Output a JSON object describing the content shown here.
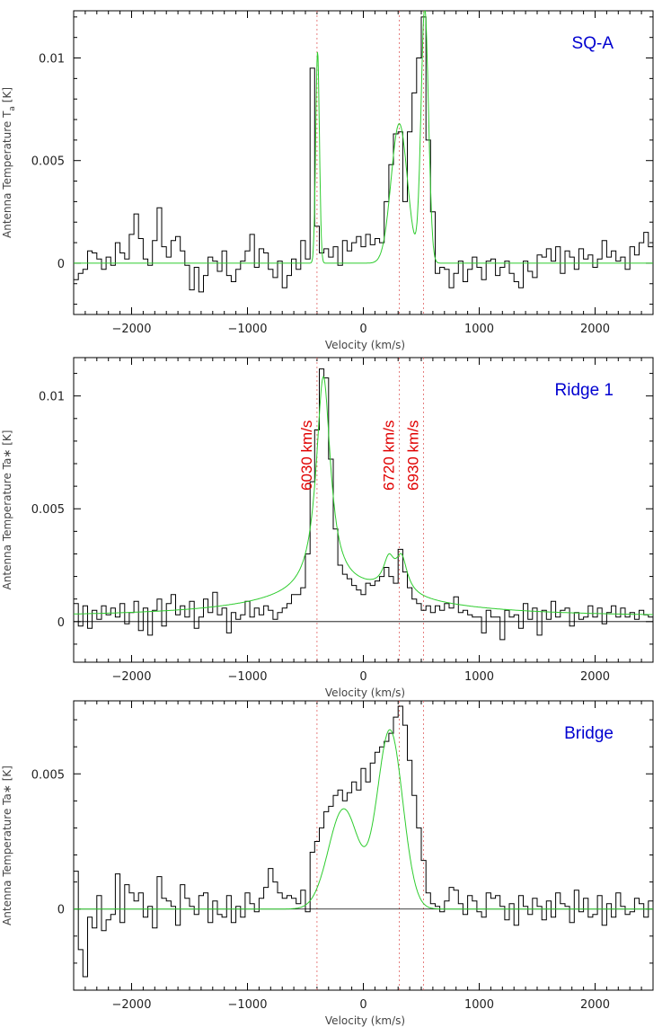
{
  "chart_data": [
    {
      "type": "line",
      "title": "SQ-A",
      "xlabel": "Velocity (km/s)",
      "ylabel": "Antenna Temperature T",
      "ylabel_subscript": "a",
      "ylabel_unit": " [K]",
      "xlim": [
        -2500,
        2500
      ],
      "ylim": [
        -0.0025,
        0.0123
      ],
      "xticks": [
        -2000,
        -1000,
        0,
        1000,
        2000
      ],
      "xtick_labels": [
        "−2000",
        "−1000",
        "0",
        "1000",
        "2000"
      ],
      "yticks": [
        0,
        0.005,
        0.01
      ],
      "ytick_labels": [
        "0",
        "0.005",
        "0.01"
      ],
      "zero_line": false,
      "reference_lines": [
        -400,
        310,
        520
      ],
      "series": [
        {
          "kind": "histogram",
          "color": "#000000",
          "bin_width": 40,
          "x": [
            -2500,
            -2460,
            -2420,
            -2380,
            -2340,
            -2300,
            -2260,
            -2220,
            -2180,
            -2140,
            -2100,
            -2060,
            -2020,
            -1980,
            -1940,
            -1900,
            -1860,
            -1820,
            -1780,
            -1740,
            -1700,
            -1660,
            -1620,
            -1580,
            -1540,
            -1500,
            -1460,
            -1420,
            -1380,
            -1340,
            -1300,
            -1260,
            -1220,
            -1180,
            -1140,
            -1100,
            -1060,
            -1020,
            -980,
            -940,
            -900,
            -860,
            -820,
            -780,
            -740,
            -700,
            -660,
            -620,
            -580,
            -540,
            -500,
            -460,
            -420,
            -380,
            -340,
            -300,
            -260,
            -220,
            -180,
            -140,
            -100,
            -60,
            -20,
            20,
            60,
            100,
            140,
            180,
            220,
            260,
            300,
            340,
            380,
            420,
            460,
            500,
            540,
            580,
            620,
            660,
            700,
            740,
            780,
            820,
            860,
            900,
            940,
            980,
            1020,
            1060,
            1100,
            1140,
            1180,
            1220,
            1260,
            1300,
            1340,
            1380,
            1420,
            1460,
            1500,
            1540,
            1580,
            1620,
            1660,
            1700,
            1740,
            1780,
            1820,
            1860,
            1900,
            1940,
            1980,
            2020,
            2060,
            2100,
            2140,
            2180,
            2220,
            2260,
            2300,
            2340,
            2380,
            2420,
            2460
          ],
          "y": [
            -0.0008,
            -0.0005,
            -0.0003,
            0.0006,
            0.0005,
            0.0002,
            -0.0003,
            0.0003,
            -0.0001,
            0.001,
            0.0005,
            0.0002,
            0.0014,
            0.0024,
            0.0012,
            0.0002,
            -0.0001,
            0.0011,
            0.0027,
            0.0008,
            0.0003,
            0.0011,
            0.0013,
            0.0006,
            -0.0001,
            -0.0013,
            -0.0002,
            -0.0014,
            -0.0006,
            0.0003,
            0.0001,
            -0.0004,
            0.0006,
            -0.0006,
            -0.0009,
            -0.0003,
            0.0001,
            0.0006,
            0.0014,
            -0.0002,
            0.0007,
            0.0005,
            -0.0003,
            -0.0007,
            0.0001,
            -0.0012,
            -0.0006,
            0.0002,
            -0.0003,
            0.0011,
            0.0002,
            0.0095,
            0.0018,
            0.0005,
            0.0007,
            0.0003,
            0.0008,
            -0.0001,
            0.0011,
            0.0006,
            0.001,
            0.0013,
            0.0008,
            0.0014,
            0.0009,
            0.0012,
            0.001,
            0.003,
            0.0048,
            0.0063,
            0.0064,
            0.003,
            0.0064,
            0.0083,
            0.01,
            0.012,
            0.006,
            0.0025,
            -0.0005,
            -0.0002,
            -0.0003,
            -0.0012,
            -0.0005,
            0.0001,
            -0.0009,
            -0.0003,
            0.0003,
            -0.0002,
            -0.0008,
            0.0001,
            0.0002,
            -0.0006,
            -0.0002,
            0.0001,
            -0.0005,
            -0.0009,
            -0.0012,
            0.0001,
            -0.0004,
            -0.0007,
            0.0004,
            0.0003,
            0.0007,
            0.0001,
            0.0008,
            -0.0005,
            0.0006,
            0.0003,
            -0.0003,
            0.0007,
            0.0002,
            0.0004,
            -0.0002,
            0.0002,
            0.0011,
            0.0003,
            0.0006,
            0.0001,
            0.0003,
            -0.0003,
            0.0008,
            0.0004,
            0.001,
            0.0015,
            0.0008
          ]
        },
        {
          "kind": "gaussian-fit",
          "color": "#2ecc2e",
          "components": [
            {
              "center": -395,
              "amplitude": 0.0103,
              "sigma": 16
            },
            {
              "center": 310,
              "amplitude": 0.0068,
              "sigma": 70
            },
            {
              "center": 530,
              "amplitude": 0.0124,
              "sigma": 32
            }
          ]
        }
      ]
    },
    {
      "type": "line",
      "title": "Ridge 1",
      "xlabel": "Velocity (km/s)",
      "ylabel": "Antenna Temperature Ta∗ [K]",
      "xlim": [
        -2500,
        2500
      ],
      "ylim": [
        -0.0018,
        0.0117
      ],
      "xticks": [
        -2000,
        -1000,
        0,
        1000,
        2000
      ],
      "xtick_labels": [
        "−2000",
        "−1000",
        "0",
        "1000",
        "2000"
      ],
      "yticks": [
        0,
        0.005,
        0.01
      ],
      "ytick_labels": [
        "0",
        "0.005",
        "0.01"
      ],
      "zero_line": true,
      "reference_lines": [
        -400,
        310,
        520
      ],
      "annotations": [
        {
          "text": "6030 km/s",
          "x": -400
        },
        {
          "text": "6720 km/s",
          "x": 310
        },
        {
          "text": "6930 km/s",
          "x": 520
        }
      ],
      "series": [
        {
          "kind": "histogram",
          "color": "#000000",
          "bin_width": 40,
          "x": [
            -2500,
            -2460,
            -2420,
            -2380,
            -2340,
            -2300,
            -2260,
            -2220,
            -2180,
            -2140,
            -2100,
            -2060,
            -2020,
            -1980,
            -1940,
            -1900,
            -1860,
            -1820,
            -1780,
            -1740,
            -1700,
            -1660,
            -1620,
            -1580,
            -1540,
            -1500,
            -1460,
            -1420,
            -1380,
            -1340,
            -1300,
            -1260,
            -1220,
            -1180,
            -1140,
            -1100,
            -1060,
            -1020,
            -980,
            -940,
            -900,
            -860,
            -820,
            -780,
            -740,
            -700,
            -660,
            -620,
            -580,
            -540,
            -500,
            -460,
            -420,
            -380,
            -340,
            -300,
            -260,
            -220,
            -180,
            -140,
            -100,
            -60,
            -20,
            20,
            60,
            100,
            140,
            180,
            220,
            260,
            300,
            340,
            380,
            420,
            460,
            500,
            540,
            580,
            620,
            660,
            700,
            740,
            780,
            820,
            860,
            900,
            940,
            980,
            1020,
            1060,
            1100,
            1140,
            1180,
            1220,
            1260,
            1300,
            1340,
            1380,
            1420,
            1460,
            1500,
            1540,
            1580,
            1620,
            1660,
            1700,
            1740,
            1780,
            1820,
            1860,
            1900,
            1940,
            1980,
            2020,
            2060,
            2100,
            2140,
            2180,
            2220,
            2260,
            2300,
            2340,
            2380,
            2420,
            2460
          ],
          "y": [
            0.0008,
            -0.0002,
            0.0007,
            -0.0003,
            0.0005,
            0.0001,
            0.0007,
            0.0003,
            0.0006,
            0.0002,
            0.0008,
            -0.0001,
            0.0004,
            0.0009,
            -0.0004,
            0.0006,
            -0.0006,
            0.0005,
            0.001,
            -0.0002,
            0.0008,
            0.0012,
            0.0003,
            0.0007,
            0.0002,
            0.0009,
            -0.0003,
            0.0002,
            0.001,
            0.0004,
            0.0013,
            0.0003,
            0.0006,
            -0.0005,
            0.0004,
            0.0001,
            0.0003,
            0.0009,
            0.0002,
            0.0006,
            0.0003,
            0.0007,
            0.0005,
            0.0001,
            0.0004,
            0.0006,
            0.0008,
            0.0012,
            0.0012,
            0.0015,
            0.003,
            0.0062,
            0.0085,
            0.0112,
            0.0108,
            0.0072,
            0.0041,
            0.0025,
            0.0021,
            0.0019,
            0.0016,
            0.0014,
            0.0012,
            0.0017,
            0.0016,
            0.0018,
            0.002,
            0.0024,
            0.002,
            0.0017,
            0.0032,
            0.0022,
            0.0015,
            0.001,
            0.0008,
            0.0005,
            0.0007,
            0.0004,
            0.0007,
            0.0005,
            0.0008,
            0.0006,
            0.0011,
            0.0004,
            0.0005,
            0.0003,
            0.0002,
            0.0002,
            -0.0005,
            0.0005,
            0.0002,
            0.0002,
            -0.0008,
            0.0005,
            0.0002,
            0.0003,
            -0.0003,
            0.0008,
            0.0001,
            0.0006,
            -0.0006,
            0.0005,
            0.0001,
            0.0009,
            0.0002,
            0.0005,
            0.0006,
            -0.0002,
            0.0004,
            0.0001,
            0.0002,
            0.0007,
            0.0002,
            0.0006,
            -0.0001,
            0.0004,
            0.0007,
            0.0002,
            0.0006,
            0.0002,
            0.0004,
            0.0001,
            0.0005,
            0.0003,
            0.0002
          ]
        },
        {
          "kind": "lorentzian-fit",
          "color": "#2ecc2e",
          "baseline": 0.0002,
          "components": [
            {
              "center": -345,
              "amplitude": 0.0095,
              "width": 75
            },
            {
              "center": 220,
              "amplitude": 0.0013,
              "width": 60
            },
            {
              "center": 330,
              "amplitude": 0.0015,
              "width": 60
            },
            {
              "center": -150,
              "amplitude": 0.0012,
              "width": 800
            }
          ]
        }
      ]
    },
    {
      "type": "line",
      "title": "Bridge",
      "xlabel": "Velocity (km/s)",
      "ylabel": "Antenna Temperature Ta∗ [K]",
      "xlim": [
        -2500,
        2500
      ],
      "ylim": [
        -0.003,
        0.0077
      ],
      "xticks": [
        -2000,
        -1000,
        0,
        1000,
        2000
      ],
      "xtick_labels": [
        "−2000",
        "−1000",
        "0",
        "1000",
        "2000"
      ],
      "yticks": [
        0,
        0.005
      ],
      "ytick_labels": [
        "0",
        "0.005"
      ],
      "zero_line": true,
      "reference_lines": [
        -400,
        310,
        520
      ],
      "series": [
        {
          "kind": "histogram",
          "color": "#000000",
          "bin_width": 40,
          "x": [
            -2500,
            -2460,
            -2420,
            -2380,
            -2340,
            -2300,
            -2260,
            -2220,
            -2180,
            -2140,
            -2100,
            -2060,
            -2020,
            -1980,
            -1940,
            -1900,
            -1860,
            -1820,
            -1780,
            -1740,
            -1700,
            -1660,
            -1620,
            -1580,
            -1540,
            -1500,
            -1460,
            -1420,
            -1380,
            -1340,
            -1300,
            -1260,
            -1220,
            -1180,
            -1140,
            -1100,
            -1060,
            -1020,
            -980,
            -940,
            -900,
            -860,
            -820,
            -780,
            -740,
            -700,
            -660,
            -620,
            -580,
            -540,
            -500,
            -460,
            -420,
            -380,
            -340,
            -300,
            -260,
            -220,
            -180,
            -140,
            -100,
            -60,
            -20,
            20,
            60,
            100,
            140,
            180,
            220,
            260,
            300,
            340,
            380,
            420,
            460,
            500,
            540,
            580,
            620,
            660,
            700,
            740,
            780,
            820,
            860,
            900,
            940,
            980,
            1020,
            1060,
            1100,
            1140,
            1180,
            1220,
            1260,
            1300,
            1340,
            1380,
            1420,
            1460,
            1500,
            1540,
            1580,
            1620,
            1660,
            1700,
            1740,
            1780,
            1820,
            1860,
            1900,
            1940,
            1980,
            2020,
            2060,
            2100,
            2140,
            2180,
            2220,
            2260,
            2300,
            2340,
            2380,
            2420,
            2460
          ],
          "y": [
            0.0014,
            -0.0015,
            -0.0025,
            -0.0003,
            -0.0007,
            0.0005,
            -0.0008,
            -0.0004,
            -0.0002,
            0.0013,
            -0.0005,
            0.0009,
            0.0006,
            0.0003,
            0.0006,
            -0.0003,
            0.0001,
            -0.0007,
            0.0012,
            0.0004,
            0.0003,
            0.0001,
            -0.0006,
            0.0009,
            0.0004,
            0.0001,
            -0.0002,
            0.0005,
            0.0006,
            -0.0005,
            0.0003,
            -0.0002,
            -0.0003,
            0.0005,
            -0.0005,
            0.0001,
            -0.0003,
            0.0006,
            0.0002,
            -0.0001,
            0.0004,
            0.0008,
            0.0015,
            0.001,
            0.0006,
            0.0004,
            0.0005,
            0.0004,
            0.0002,
            0.0007,
            -0.0001,
            0.0021,
            0.0025,
            0.003,
            0.0036,
            0.0038,
            0.0042,
            0.0044,
            0.004,
            0.0043,
            0.0047,
            0.0044,
            0.0052,
            0.0047,
            0.0054,
            0.0058,
            0.006,
            0.0062,
            0.0065,
            0.0071,
            0.0075,
            0.0068,
            0.0055,
            0.0042,
            0.003,
            0.0018,
            0.0006,
            0.0002,
            0.0001,
            -0.0001,
            0.0003,
            0.0008,
            0.0007,
            0.0002,
            -0.0002,
            0.0005,
            0.0003,
            -0.0001,
            -0.0003,
            0.0006,
            0.0004,
            0.0005,
            0.0001,
            -0.0004,
            0.0002,
            -0.0006,
            0.0005,
            0.0001,
            -0.0002,
            0.0004,
            0.0001,
            -0.0004,
            0.0003,
            -0.0003,
            0.0006,
            0.0002,
            0.0001,
            -0.0005,
            0.0007,
            -0.0001,
            0.0004,
            -0.0003,
            -0.0002,
            0.0005,
            -0.0006,
            0.0002,
            -0.0003,
            0.0006,
            0.0001,
            -0.0002,
            -0.0001,
            0.0004,
            0.0002,
            -0.0003,
            0.0003
          ]
        },
        {
          "kind": "gaussian-fit",
          "color": "#2ecc2e",
          "components": [
            {
              "center": -170,
              "amplitude": 0.0037,
              "sigma": 130
            },
            {
              "center": 230,
              "amplitude": 0.0066,
              "sigma": 110
            }
          ]
        }
      ]
    }
  ]
}
